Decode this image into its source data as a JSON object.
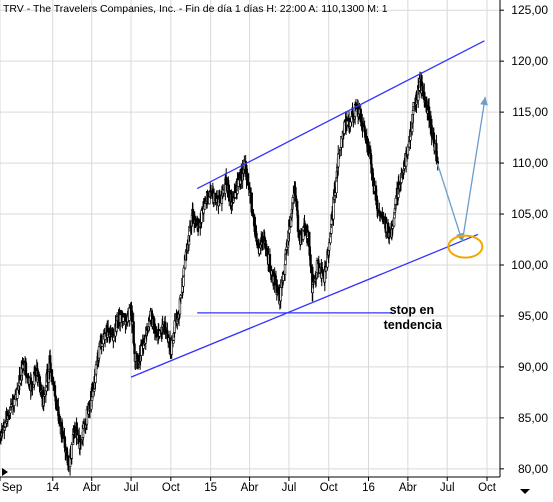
{
  "header": {
    "text": "TRV - The Travelers Companies, Inc.  - Fin de día 1 días H: 22:00  A: 110,1300  M: 1"
  },
  "colors": {
    "background": "#ffffff",
    "grid": "#d9d9d9",
    "candle": "#000000",
    "channel": "#3333ff",
    "projection": "#6a9ccc",
    "highlight": "#f0a800",
    "annotation": "#000000"
  },
  "chart_data": {
    "type": "candlestick",
    "title": "TRV - The Travelers Companies, Inc.  - Fin de día 1 días H: 22:00  A: 110,1300  M: 1",
    "xlabel": "",
    "ylabel": "",
    "grid": true,
    "y_axis_position": "right",
    "ylim": [
      79.2,
      126.0
    ],
    "xlim": [
      "2013-09-01",
      "2016-10-31"
    ],
    "y_ticks": [
      {
        "value": 80,
        "label": "80,00"
      },
      {
        "value": 85,
        "label": "85,00"
      },
      {
        "value": 90,
        "label": "90,00"
      },
      {
        "value": 95,
        "label": "95,00"
      },
      {
        "value": 100,
        "label": "100,00"
      },
      {
        "value": 105,
        "label": "105,00"
      },
      {
        "value": 110,
        "label": "110,00"
      },
      {
        "value": 115,
        "label": "115,00"
      },
      {
        "value": 120,
        "label": "120,00"
      },
      {
        "value": 125,
        "label": "125,00"
      }
    ],
    "x_ticks": [
      {
        "date": "2013-09-01",
        "label": "Sep"
      },
      {
        "date": "2014-01-01",
        "label": "14"
      },
      {
        "date": "2014-04-01",
        "label": "Abr"
      },
      {
        "date": "2014-07-01",
        "label": "Jul"
      },
      {
        "date": "2014-10-01",
        "label": "Oct"
      },
      {
        "date": "2015-01-01",
        "label": "15"
      },
      {
        "date": "2015-04-01",
        "label": "Abr"
      },
      {
        "date": "2015-07-01",
        "label": "Jul"
      },
      {
        "date": "2015-10-01",
        "label": "Oct"
      },
      {
        "date": "2016-01-01",
        "label": "16"
      },
      {
        "date": "2016-04-01",
        "label": "Abr"
      },
      {
        "date": "2016-07-01",
        "label": "Jul"
      },
      {
        "date": "2016-10-01",
        "label": "Oct"
      }
    ],
    "price_path": [
      [
        "2013-09-01",
        83.0
      ],
      [
        "2013-09-20",
        85.5
      ],
      [
        "2013-10-10",
        87.5
      ],
      [
        "2013-10-25",
        90.5
      ],
      [
        "2013-11-10",
        88.0
      ],
      [
        "2013-11-25",
        89.5
      ],
      [
        "2013-12-10",
        86.5
      ],
      [
        "2013-12-25",
        90.5
      ],
      [
        "2014-01-10",
        86.0
      ],
      [
        "2014-01-28",
        82.5
      ],
      [
        "2014-02-08",
        80.0
      ],
      [
        "2014-02-20",
        84.0
      ],
      [
        "2014-03-05",
        82.5
      ],
      [
        "2014-03-20",
        85.0
      ],
      [
        "2014-04-05",
        88.0
      ],
      [
        "2014-04-20",
        92.0
      ],
      [
        "2014-05-05",
        93.5
      ],
      [
        "2014-05-20",
        93.0
      ],
      [
        "2014-06-05",
        95.0
      ],
      [
        "2014-06-20",
        94.5
      ],
      [
        "2014-07-01",
        95.5
      ],
      [
        "2014-07-10",
        91.0
      ],
      [
        "2014-07-18",
        90.5
      ],
      [
        "2014-08-01",
        93.0
      ],
      [
        "2014-08-15",
        95.0
      ],
      [
        "2014-09-01",
        93.0
      ],
      [
        "2014-09-15",
        94.5
      ],
      [
        "2014-10-01",
        91.5
      ],
      [
        "2014-10-10",
        94.0
      ],
      [
        "2014-10-22",
        96.0
      ],
      [
        "2014-11-05",
        101.0
      ],
      [
        "2014-11-20",
        105.0
      ],
      [
        "2014-12-05",
        103.5
      ],
      [
        "2014-12-20",
        106.5
      ],
      [
        "2015-01-05",
        107.0
      ],
      [
        "2015-01-20",
        106.0
      ],
      [
        "2015-02-05",
        108.0
      ],
      [
        "2015-02-20",
        106.0
      ],
      [
        "2015-03-05",
        108.0
      ],
      [
        "2015-03-20",
        109.5
      ],
      [
        "2015-04-01",
        107.5
      ],
      [
        "2015-04-10",
        104.0
      ],
      [
        "2015-04-22",
        101.5
      ],
      [
        "2015-05-05",
        102.5
      ],
      [
        "2015-05-20",
        99.5
      ],
      [
        "2015-06-01",
        98.0
      ],
      [
        "2015-06-10",
        96.5
      ],
      [
        "2015-06-20",
        100.0
      ],
      [
        "2015-07-01",
        103.5
      ],
      [
        "2015-07-15",
        108.0
      ],
      [
        "2015-07-25",
        102.0
      ],
      [
        "2015-08-05",
        104.0
      ],
      [
        "2015-08-15",
        103.0
      ],
      [
        "2015-08-24",
        97.5
      ],
      [
        "2015-09-05",
        100.0
      ],
      [
        "2015-09-20",
        98.5
      ],
      [
        "2015-10-05",
        103.0
      ],
      [
        "2015-10-20",
        109.5
      ],
      [
        "2015-11-05",
        113.5
      ],
      [
        "2015-11-20",
        114.0
      ],
      [
        "2015-12-05",
        115.5
      ],
      [
        "2015-12-20",
        113.5
      ],
      [
        "2016-01-05",
        110.5
      ],
      [
        "2016-01-20",
        106.0
      ],
      [
        "2016-02-05",
        104.5
      ],
      [
        "2016-02-20",
        102.5
      ],
      [
        "2016-03-05",
        106.5
      ],
      [
        "2016-03-20",
        109.5
      ],
      [
        "2016-04-01",
        111.5
      ],
      [
        "2016-04-15",
        115.5
      ],
      [
        "2016-04-28",
        118.0
      ],
      [
        "2016-05-06",
        117.0
      ],
      [
        "2016-05-14",
        116.0
      ],
      [
        "2016-06-01",
        112.0
      ],
      [
        "2016-06-10",
        110.0
      ]
    ],
    "annotations": {
      "channel_upper": [
        [
          "2014-12-01",
          107.5
        ],
        [
          "2016-09-25",
          122.0
        ]
      ],
      "channel_lower": [
        [
          "2014-07-01",
          89.0
        ],
        [
          "2016-09-10",
          103.0
        ]
      ],
      "stop_line": [
        [
          "2014-12-01",
          95.3
        ],
        [
          "2016-02-25",
          95.3
        ]
      ],
      "stop_label": [
        "stop en",
        "tendencia"
      ],
      "stop_label_at": [
        "2016-02-05",
        95.0
      ],
      "projection": [
        [
          "2016-06-08",
          110.0
        ],
        [
          "2016-08-05",
          102.3
        ],
        [
          "2016-09-27",
          116.5
        ]
      ],
      "highlight_circle_at": [
        "2016-08-12",
        101.8
      ]
    }
  }
}
